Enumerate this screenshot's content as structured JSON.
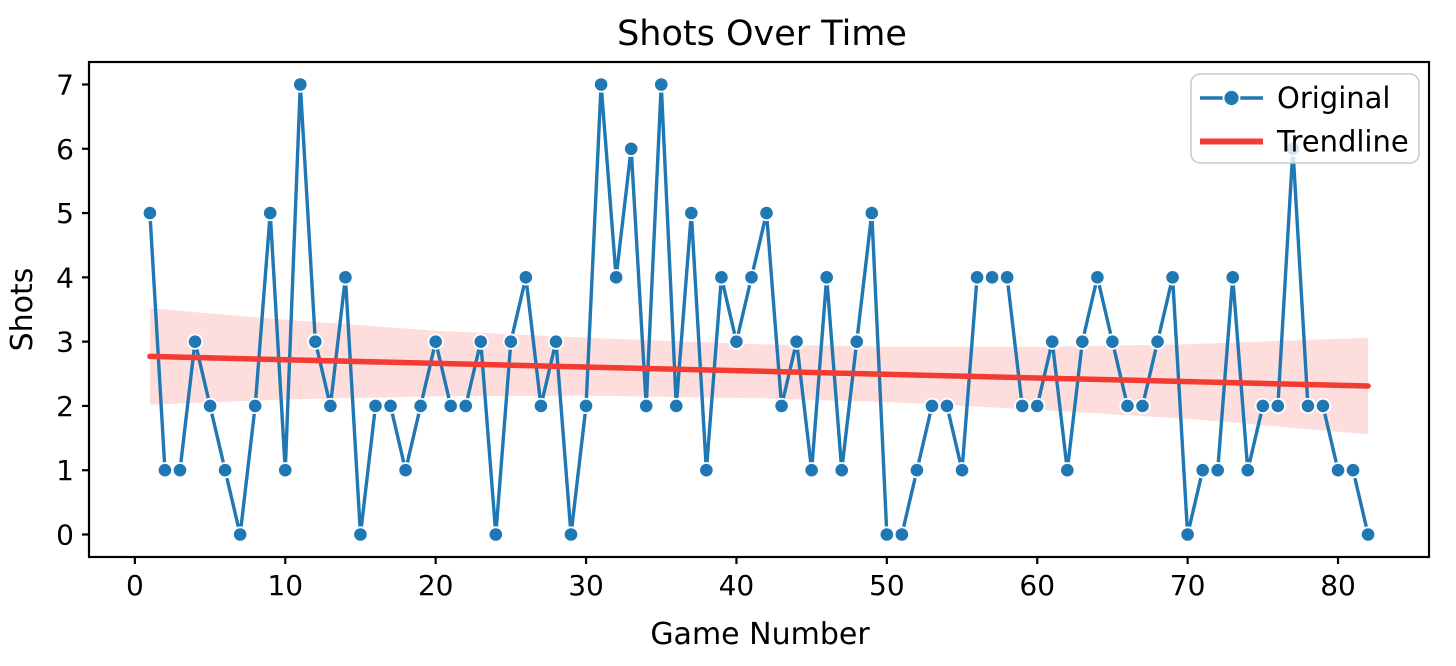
{
  "figure": {
    "title": "Shots Over Time",
    "xlabel": "Game Number",
    "ylabel": "Shots",
    "legend": {
      "position": "upper right",
      "items": [
        {
          "label": "Original",
          "color": "#1f77b4",
          "style": "line-with-marker"
        },
        {
          "label": "Trendline",
          "color": "#f23b32",
          "style": "line"
        }
      ]
    }
  },
  "chart_data": {
    "type": "line",
    "title": "Shots Over Time",
    "xlabel": "Game Number",
    "ylabel": "Shots",
    "xlim": [
      -3.05,
      86.05
    ],
    "ylim": [
      -0.35,
      7.35
    ],
    "xticks": [
      0,
      10,
      20,
      30,
      40,
      50,
      60,
      70,
      80
    ],
    "yticks": [
      0,
      1,
      2,
      3,
      4,
      5,
      6,
      7
    ],
    "grid": false,
    "legend_position": "upper right",
    "x": [
      1,
      2,
      3,
      4,
      5,
      6,
      7,
      8,
      9,
      10,
      11,
      12,
      13,
      14,
      15,
      16,
      17,
      18,
      19,
      20,
      21,
      22,
      23,
      24,
      25,
      26,
      27,
      28,
      29,
      30,
      31,
      32,
      33,
      34,
      35,
      36,
      37,
      38,
      39,
      40,
      41,
      42,
      43,
      44,
      45,
      46,
      47,
      48,
      49,
      50,
      51,
      52,
      53,
      54,
      55,
      56,
      57,
      58,
      59,
      60,
      61,
      62,
      63,
      64,
      65,
      66,
      67,
      68,
      69,
      70,
      71,
      72,
      73,
      74,
      75,
      76,
      77,
      78,
      79,
      80,
      81,
      82
    ],
    "series": [
      {
        "name": "Original",
        "color": "#1f77b4",
        "marker": "circle",
        "values": [
          5,
          1,
          1,
          3,
          2,
          1,
          0,
          2,
          5,
          1,
          7,
          3,
          2,
          4,
          0,
          2,
          2,
          1,
          2,
          3,
          2,
          2,
          3,
          0,
          3,
          4,
          2,
          3,
          0,
          2,
          7,
          4,
          6,
          2,
          7,
          2,
          5,
          1,
          4,
          3,
          4,
          5,
          2,
          3,
          1,
          4,
          1,
          3,
          5,
          0,
          0,
          1,
          2,
          2,
          1,
          4,
          4,
          4,
          2,
          2,
          3,
          1,
          3,
          4,
          3,
          2,
          2,
          3,
          4,
          0,
          1,
          1,
          4,
          1,
          2,
          2,
          6,
          2,
          2,
          1,
          1,
          0
        ]
      },
      {
        "name": "Trendline",
        "color": "#f23b32",
        "x": [
          1,
          82
        ],
        "values": [
          2.77,
          2.31
        ]
      }
    ],
    "ci_band": {
      "series": "Trendline",
      "fill_color": "#f23b32",
      "fill_opacity": 0.17,
      "points": [
        {
          "x": 1,
          "lower": 2.02,
          "upper": 3.52
        },
        {
          "x": 10,
          "lower": 2.1,
          "upper": 3.34
        },
        {
          "x": 20,
          "lower": 2.15,
          "upper": 3.17
        },
        {
          "x": 30,
          "lower": 2.16,
          "upper": 3.06
        },
        {
          "x": 41.5,
          "lower": 2.12,
          "upper": 2.96
        },
        {
          "x": 50,
          "lower": 2.06,
          "upper": 2.92
        },
        {
          "x": 60,
          "lower": 1.94,
          "upper": 2.92
        },
        {
          "x": 70,
          "lower": 1.8,
          "upper": 2.96
        },
        {
          "x": 82,
          "lower": 1.56,
          "upper": 3.06
        }
      ]
    }
  },
  "colors": {
    "original_line": "#1f77b4",
    "marker_edge": "#ffffff",
    "trendline": "#f23b32",
    "spine": "#000000",
    "legend_border": "#cccccc",
    "legend_background": "rgba(255,255,255,0.8)"
  }
}
